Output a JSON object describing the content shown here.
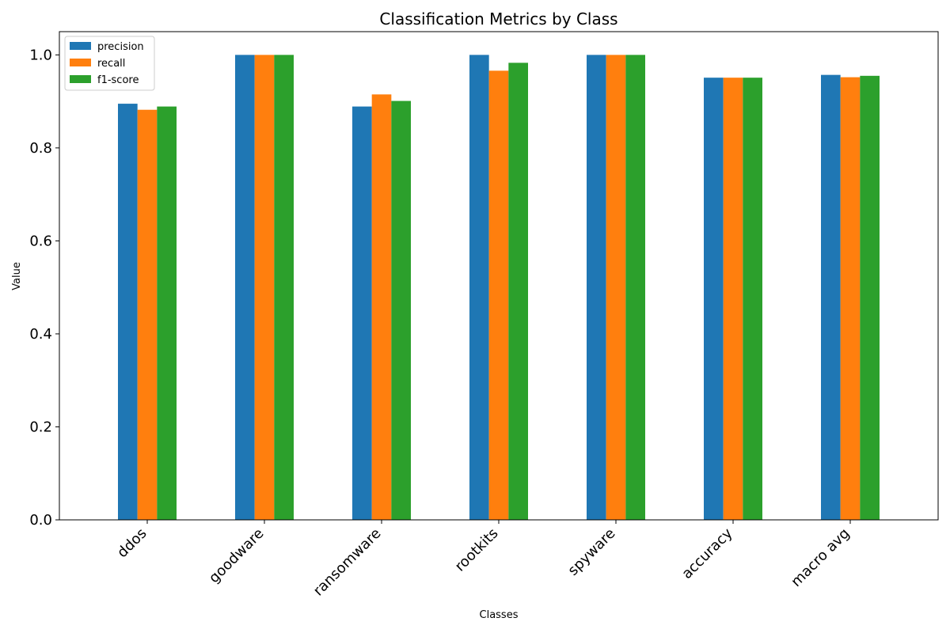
{
  "chart_data": {
    "type": "bar",
    "title": "Classification Metrics by Class",
    "xlabel": "Classes",
    "ylabel": "Value",
    "categories": [
      "ddos",
      "goodware",
      "ransomware",
      "rootkits",
      "spyware",
      "accuracy",
      "macro avg"
    ],
    "series": [
      {
        "name": "precision",
        "color": "#1f77b4",
        "values": [
          0.895,
          1.0,
          0.889,
          1.0,
          1.0,
          0.951,
          0.957
        ]
      },
      {
        "name": "recall",
        "color": "#ff7f0e",
        "values": [
          0.882,
          1.0,
          0.915,
          0.966,
          1.0,
          0.951,
          0.952
        ]
      },
      {
        "name": "f1-score",
        "color": "#2ca02c",
        "values": [
          0.889,
          1.0,
          0.901,
          0.983,
          1.0,
          0.951,
          0.955
        ]
      }
    ],
    "ylim": [
      0,
      1.05
    ],
    "yticks": [
      0.0,
      0.2,
      0.4,
      0.6,
      0.8,
      1.0
    ],
    "ytick_labels": [
      "0.0",
      "0.2",
      "0.4",
      "0.6",
      "0.8",
      "1.0"
    ],
    "grid": false,
    "legend_position": "top-left"
  }
}
